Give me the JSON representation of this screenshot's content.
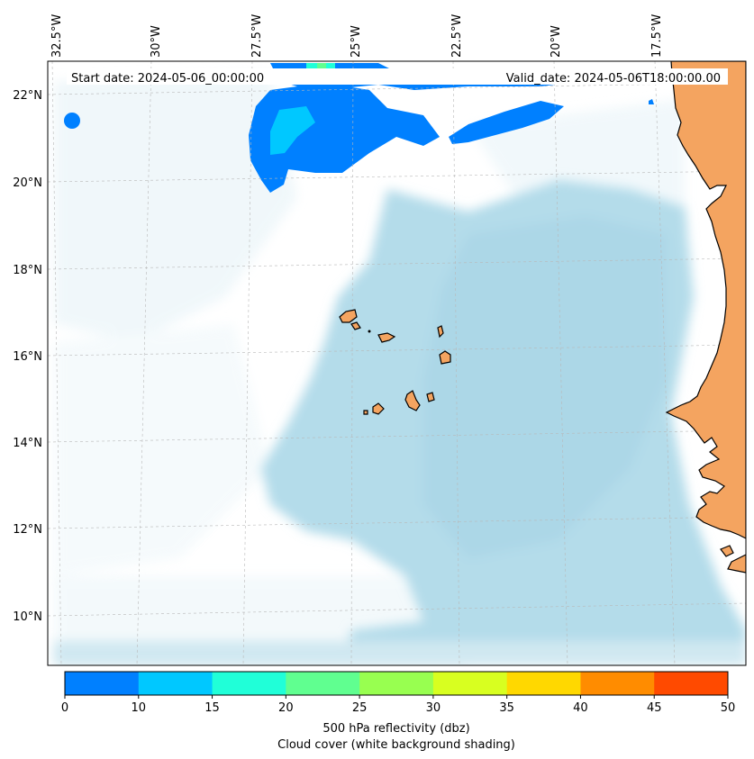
{
  "header": {
    "start_date": "Start date: 2024-05-06_00:00:00",
    "valid_date": "Valid_date: 2024-05-06T18:00:00.00"
  },
  "axes": {
    "lon_labels": [
      "32.5°W",
      "30°W",
      "27.5°W",
      "25°W",
      "22.5°W",
      "20°W",
      "17.5°W"
    ],
    "lat_labels": [
      "22°N",
      "20°N",
      "18°N",
      "16°N",
      "14°N",
      "12°N",
      "10°N"
    ]
  },
  "colorbar": {
    "ticks": [
      "0",
      "10",
      "15",
      "20",
      "25",
      "30",
      "35",
      "40",
      "45",
      "50"
    ],
    "colors": [
      "#0080ff",
      "#00c8ff",
      "#20ffd8",
      "#60ff90",
      "#98ff50",
      "#d8ff20",
      "#ffd800",
      "#ff8c00",
      "#ff4a00"
    ],
    "label_line1": "500 hPa reflectivity (dbz)",
    "label_line2": "Cloud cover (white background shading)"
  },
  "colors": {
    "land": "#f4a460",
    "cloud": "#add8e6",
    "reflectivity_low": "#0080ff",
    "reflectivity_mid": "#00c8ff"
  }
}
